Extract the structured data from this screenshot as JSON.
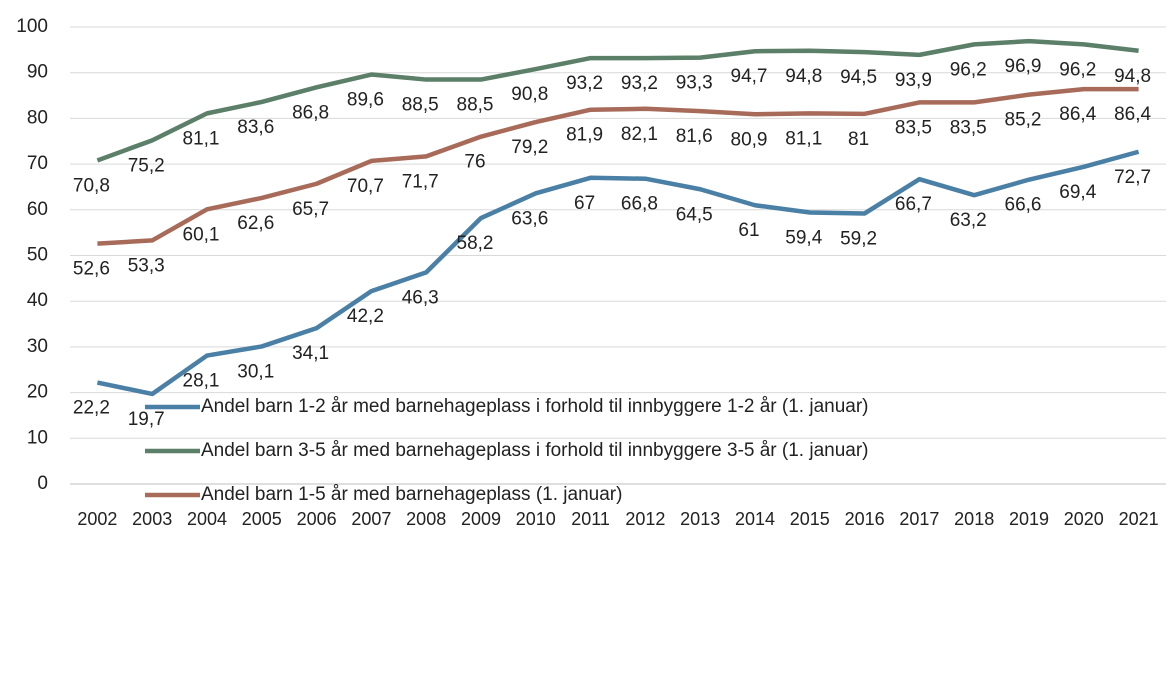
{
  "chart_data": {
    "type": "line",
    "categories": [
      "2002",
      "2003",
      "2004",
      "2005",
      "2006",
      "2007",
      "2008",
      "2009",
      "2010",
      "2011",
      "2012",
      "2013",
      "2014",
      "2015",
      "2016",
      "2017",
      "2018",
      "2019",
      "2020",
      "2021"
    ],
    "ylim": [
      0,
      100
    ],
    "yticks": [
      0,
      10,
      20,
      30,
      40,
      50,
      60,
      70,
      80,
      90,
      100
    ],
    "grid": true,
    "legend": "bottom",
    "series": [
      {
        "name": "Andel barn 1-2 år med barnehageplass i forhold til innbyggere 1-2 år (1. januar)",
        "color": "#4a7fa6",
        "values": [
          22.2,
          19.7,
          28.1,
          30.1,
          34.1,
          42.2,
          46.3,
          58.2,
          63.6,
          67,
          66.8,
          64.5,
          61,
          59.4,
          59.2,
          66.7,
          63.2,
          66.6,
          69.4,
          72.7
        ],
        "value_labels": [
          "22,2",
          "19,7",
          "28,1",
          "30,1",
          "34,1",
          "42,2",
          "46,3",
          "58,2",
          "63,6",
          "67",
          "66,8",
          "64,5",
          "61",
          "59,4",
          "59,2",
          "66,7",
          "63,2",
          "66,6",
          "69,4",
          "72,7"
        ]
      },
      {
        "name": "Andel barn 3-5 år med barnehageplass i forhold til innbyggere 3-5 år (1. januar)",
        "color": "#5b7f68",
        "values": [
          70.8,
          75.2,
          81.1,
          83.6,
          86.8,
          89.6,
          88.5,
          88.5,
          90.8,
          93.2,
          93.2,
          93.3,
          94.7,
          94.8,
          94.5,
          93.9,
          96.2,
          96.9,
          96.2,
          94.8
        ],
        "value_labels": [
          "70,8",
          "75,2",
          "81,1",
          "83,6",
          "86,8",
          "89,6",
          "88,5",
          "88,5",
          "90,8",
          "93,2",
          "93,2",
          "93,3",
          "94,7",
          "94,8",
          "94,5",
          "93,9",
          "96,2",
          "96,9",
          "96,2",
          "94,8"
        ]
      },
      {
        "name": "Andel barn 1-5 år med barnehageplass (1. januar)",
        "color": "#a86b59",
        "values": [
          52.6,
          53.3,
          60.1,
          62.6,
          65.7,
          70.7,
          71.7,
          76,
          79.2,
          81.9,
          82.1,
          81.6,
          80.9,
          81.1,
          81,
          83.5,
          83.5,
          85.2,
          86.4,
          86.4
        ],
        "value_labels": [
          "52,6",
          "53,3",
          "60,1",
          "62,6",
          "65,7",
          "70,7",
          "71,7",
          "76",
          "79,2",
          "81,9",
          "82,1",
          "81,6",
          "80,9",
          "81,1",
          "81",
          "83,5",
          "83,5",
          "85,2",
          "86,4",
          "86,4"
        ]
      }
    ]
  }
}
